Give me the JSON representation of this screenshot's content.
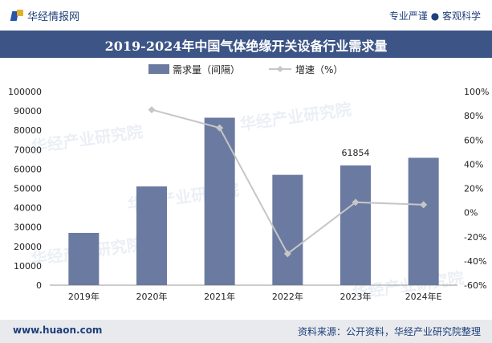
{
  "header": {
    "brand": "华经情报网",
    "tagline": "专业严谨 ● 客观科学"
  },
  "footer": {
    "website": "www.huaon.com",
    "source": "资料来源：公开资料，华经产业研究院整理"
  },
  "colors": {
    "bar": "#6b7aa0",
    "line": "#c6c6c6",
    "title_bg": "#3c5586"
  },
  "chart_data": {
    "type": "bar",
    "title": "2019-2024年中国气体绝缘开关设备行业需求量",
    "categories": [
      "2019年",
      "2020年",
      "2021年",
      "2022年",
      "2023年",
      "2024年E"
    ],
    "series": [
      {
        "name": "需求量（间隔）",
        "type": "bar",
        "axis": "left",
        "values": [
          27000,
          51000,
          86500,
          57000,
          61854,
          65800
        ]
      },
      {
        "name": "增速（%）",
        "type": "line",
        "axis": "right",
        "values": [
          null,
          85,
          70,
          -34,
          8.5,
          6.5
        ]
      }
    ],
    "data_labels": [
      {
        "index": 4,
        "text": "61854"
      }
    ],
    "y_left": {
      "min": 0,
      "max": 100000,
      "ticks": [
        "0",
        "10000",
        "20000",
        "30000",
        "40000",
        "50000",
        "60000",
        "70000",
        "80000",
        "90000",
        "100000"
      ]
    },
    "y_right": {
      "min": -60,
      "max": 100,
      "ticks": [
        "-60%",
        "-40%",
        "-20%",
        "0%",
        "20%",
        "40%",
        "60%",
        "80%",
        "100%"
      ]
    },
    "legend_position": "top-center",
    "grid": false
  }
}
